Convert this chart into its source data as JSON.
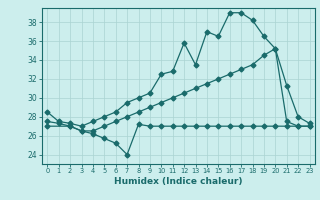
{
  "title": "",
  "xlabel": "Humidex (Indice chaleur)",
  "bg_color": "#cceeed",
  "grid_color": "#aad4d2",
  "line_color": "#1a6b6b",
  "x_ticks": [
    0,
    1,
    2,
    3,
    4,
    5,
    6,
    7,
    8,
    9,
    10,
    11,
    12,
    13,
    14,
    15,
    16,
    17,
    18,
    19,
    20,
    21,
    22,
    23
  ],
  "ylim": [
    23.0,
    39.5
  ],
  "xlim": [
    -0.5,
    23.5
  ],
  "yticks": [
    24,
    26,
    28,
    30,
    32,
    34,
    36,
    38
  ],
  "line1_x": [
    0,
    1,
    2,
    3,
    4,
    5,
    6,
    7,
    8,
    9,
    10,
    11,
    12,
    13,
    14,
    15,
    16,
    17,
    18,
    19,
    20,
    21,
    22,
    23
  ],
  "line1_y": [
    28.5,
    27.5,
    27.3,
    27.0,
    27.5,
    28.0,
    28.5,
    29.5,
    30.0,
    30.5,
    32.5,
    32.8,
    35.8,
    33.5,
    37.0,
    36.5,
    39.0,
    39.0,
    38.2,
    36.5,
    35.2,
    31.3,
    28.0,
    27.3
  ],
  "line2_x": [
    0,
    2,
    3,
    4,
    5,
    6,
    7,
    8,
    9,
    10,
    11,
    12,
    13,
    14,
    15,
    16,
    17,
    18,
    19,
    20,
    21,
    22,
    23
  ],
  "line2_y": [
    27.0,
    27.0,
    26.5,
    26.5,
    27.0,
    27.5,
    28.0,
    28.5,
    29.0,
    29.5,
    30.0,
    30.5,
    31.0,
    31.5,
    32.0,
    32.5,
    33.0,
    33.5,
    34.5,
    35.2,
    27.5,
    27.0,
    27.0
  ],
  "line3_x": [
    0,
    1,
    2,
    3,
    4,
    5,
    6,
    7,
    8,
    9,
    10,
    11,
    12,
    13,
    14,
    15,
    16,
    17,
    18,
    19,
    20,
    21,
    22,
    23
  ],
  "line3_y": [
    27.5,
    27.3,
    27.0,
    26.5,
    26.2,
    25.7,
    25.2,
    24.0,
    27.2,
    27.0,
    27.0,
    27.0,
    27.0,
    27.0,
    27.0,
    27.0,
    27.0,
    27.0,
    27.0,
    27.0,
    27.0,
    27.0,
    27.0,
    27.0
  ]
}
